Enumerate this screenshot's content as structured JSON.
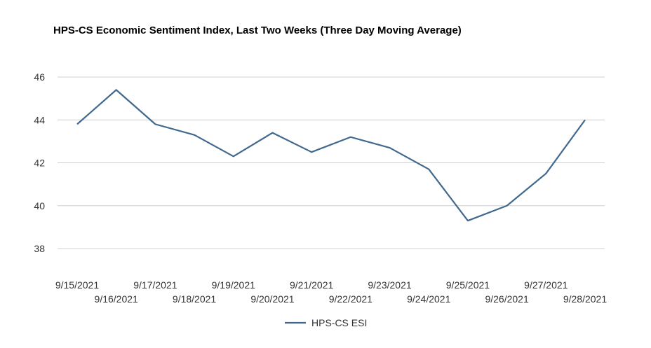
{
  "chart_data": {
    "type": "line",
    "title": "HPS-CS Economic Sentiment Index, Last Two Weeks (Three Day Moving Average)",
    "xlabel": "",
    "ylabel": "",
    "ylim": [
      38,
      46
    ],
    "yticks": [
      "38",
      "40",
      "42",
      "44",
      "46"
    ],
    "grid": true,
    "legend_position": "bottom",
    "categories": [
      "9/15/2021",
      "9/16/2021",
      "9/17/2021",
      "9/18/2021",
      "9/19/2021",
      "9/20/2021",
      "9/21/2021",
      "9/22/2021",
      "9/23/2021",
      "9/24/2021",
      "9/25/2021",
      "9/26/2021",
      "9/27/2021",
      "9/28/2021"
    ],
    "series": [
      {
        "name": "HPS-CS ESI",
        "color": "#41698e",
        "values": [
          43.8,
          45.4,
          43.8,
          43.3,
          42.3,
          43.4,
          42.5,
          43.2,
          42.7,
          41.7,
          39.3,
          40.0,
          41.5,
          44.0
        ]
      }
    ]
  }
}
